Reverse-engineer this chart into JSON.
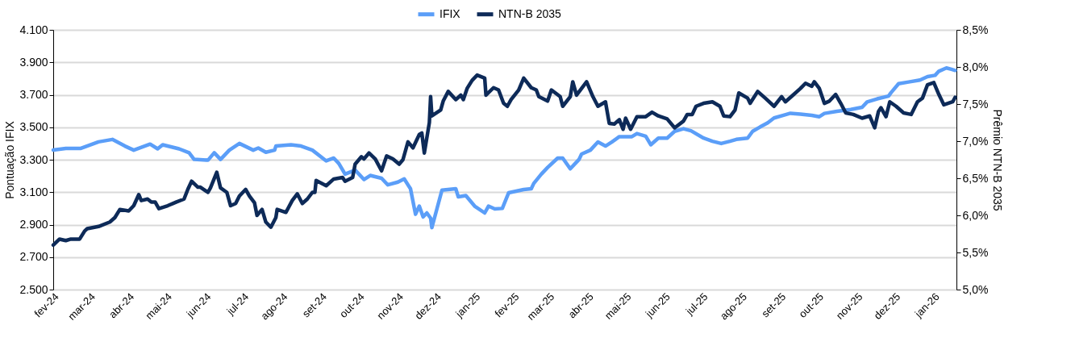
{
  "chart_data": {
    "type": "line",
    "ylabel": "Pontuação IFIX",
    "y2label": "Prêmio NTN-B 2035",
    "xlim": [
      "2024-02-01",
      "2026-01-19"
    ],
    "xticks": [
      {
        "value": "2024-02-01",
        "label": "fev-24"
      },
      {
        "value": "2024-03-01",
        "label": "mar-24"
      },
      {
        "value": "2024-04-01",
        "label": "abr-24"
      },
      {
        "value": "2024-05-01",
        "label": "mai-24"
      },
      {
        "value": "2024-06-01",
        "label": "jun-24"
      },
      {
        "value": "2024-07-01",
        "label": "jul-24"
      },
      {
        "value": "2024-08-01",
        "label": "ago-24"
      },
      {
        "value": "2024-09-01",
        "label": "set-24"
      },
      {
        "value": "2024-10-01",
        "label": "out-24"
      },
      {
        "value": "2024-11-01",
        "label": "nov-24"
      },
      {
        "value": "2024-12-01",
        "label": "dez-24"
      },
      {
        "value": "2025-01-01",
        "label": "jan-25"
      },
      {
        "value": "2025-02-01",
        "label": "fev-25"
      },
      {
        "value": "2025-03-01",
        "label": "mar-25"
      },
      {
        "value": "2025-04-01",
        "label": "abr-25"
      },
      {
        "value": "2025-05-01",
        "label": "mai-25"
      },
      {
        "value": "2025-06-01",
        "label": "jun-25"
      },
      {
        "value": "2025-07-01",
        "label": "jul-25"
      },
      {
        "value": "2025-08-01",
        "label": "ago-25"
      },
      {
        "value": "2025-09-01",
        "label": "set-25"
      },
      {
        "value": "2025-10-01",
        "label": "out-25"
      },
      {
        "value": "2025-11-01",
        "label": "nov-25"
      },
      {
        "value": "2025-12-01",
        "label": "dez-25"
      },
      {
        "value": "2026-01-01",
        "label": "jan-26"
      }
    ],
    "ylim": [
      2500,
      4100
    ],
    "yticks": [
      {
        "value": 2500,
        "label": "2.500"
      },
      {
        "value": 2700,
        "label": "2.700"
      },
      {
        "value": 2900,
        "label": "2.900"
      },
      {
        "value": 3100,
        "label": "3.100"
      },
      {
        "value": 3300,
        "label": "3.300"
      },
      {
        "value": 3500,
        "label": "3.500"
      },
      {
        "value": 3700,
        "label": "3.700"
      },
      {
        "value": 3900,
        "label": "3.900"
      },
      {
        "value": 4100,
        "label": "4.100"
      }
    ],
    "y2lim": [
      5.0,
      8.5
    ],
    "y2ticks": [
      {
        "value": 5.0,
        "label": "5,0%"
      },
      {
        "value": 5.5,
        "label": "5,5%"
      },
      {
        "value": 6.0,
        "label": "6,0%"
      },
      {
        "value": 6.5,
        "label": "6,5%"
      },
      {
        "value": 7.0,
        "label": "7,0%"
      },
      {
        "value": 7.5,
        "label": "7,5%"
      },
      {
        "value": 8.0,
        "label": "8,0%"
      },
      {
        "value": 8.5,
        "label": "8,5%"
      }
    ],
    "grid": "y",
    "legend": "top",
    "marker": "none",
    "line_style": "solid",
    "series": [
      {
        "name": "IFIX",
        "color": "#5b9ef8",
        "x": [
          "2024-02-01",
          "2024-02-11",
          "2024-02-23",
          "2024-03-08",
          "2024-03-19",
          "2024-03-29",
          "2024-04-05",
          "2024-04-18",
          "2024-04-24",
          "2024-04-28",
          "2024-05-11",
          "2024-05-19",
          "2024-05-23",
          "2024-06-03",
          "2024-06-08",
          "2024-06-13",
          "2024-06-20",
          "2024-06-28",
          "2024-07-09",
          "2024-07-13",
          "2024-07-19",
          "2024-07-26",
          "2024-07-27",
          "2024-08-08",
          "2024-08-16",
          "2024-08-25",
          "2024-09-05",
          "2024-09-11",
          "2024-09-15",
          "2024-09-20",
          "2024-09-28",
          "2024-10-05",
          "2024-10-10",
          "2024-10-19",
          "2024-10-24",
          "2024-11-01",
          "2024-11-06",
          "2024-11-11",
          "2024-11-15",
          "2024-11-18",
          "2024-11-21",
          "2024-11-24",
          "2024-11-27",
          "2024-11-28",
          "2024-12-02",
          "2024-12-06",
          "2024-12-17",
          "2024-12-19",
          "2024-12-25",
          "2025-01-01",
          "2025-01-09",
          "2025-01-12",
          "2025-01-17",
          "2025-01-23",
          "2025-01-28",
          "2025-02-09",
          "2025-02-15",
          "2025-02-17",
          "2025-02-23",
          "2025-02-28",
          "2025-03-08",
          "2025-03-12",
          "2025-03-18",
          "2025-03-25",
          "2025-03-27",
          "2025-04-03",
          "2025-04-09",
          "2025-04-15",
          "2025-04-20",
          "2025-04-26",
          "2025-05-06",
          "2025-05-10",
          "2025-05-17",
          "2025-05-21",
          "2025-05-27",
          "2025-06-03",
          "2025-06-09",
          "2025-06-16",
          "2025-06-22",
          "2025-07-02",
          "2025-07-09",
          "2025-07-16",
          "2025-07-23",
          "2025-07-28",
          "2025-08-06",
          "2025-08-10",
          "2025-08-16",
          "2025-08-22",
          "2025-08-27",
          "2025-09-03",
          "2025-09-09",
          "2025-09-17",
          "2025-09-26",
          "2025-10-02",
          "2025-10-06",
          "2025-10-16",
          "2025-10-27",
          "2025-11-05",
          "2025-11-09",
          "2025-11-17",
          "2025-11-26",
          "2025-11-28",
          "2025-12-04",
          "2025-12-12",
          "2025-12-21",
          "2025-12-27",
          "2026-01-02",
          "2026-01-05",
          "2026-01-11",
          "2026-01-15",
          "2026-01-18"
        ],
        "values": [
          3360,
          3370,
          3370,
          3410,
          3425,
          3384,
          3359,
          3396,
          3367,
          3392,
          3367,
          3343,
          3302,
          3297,
          3343,
          3302,
          3359,
          3400,
          3359,
          3372,
          3346,
          3359,
          3384,
          3392,
          3384,
          3359,
          3293,
          3310,
          3277,
          3211,
          3236,
          3178,
          3203,
          3186,
          3145,
          3162,
          3182,
          3121,
          2964,
          3014,
          2948,
          2972,
          2940,
          2882,
          2997,
          3112,
          3121,
          3071,
          3079,
          3014,
          2972,
          3014,
          2997,
          3000,
          3096,
          3116,
          3121,
          3154,
          3211,
          3252,
          3310,
          3310,
          3244,
          3302,
          3335,
          3359,
          3409,
          3384,
          3409,
          3442,
          3442,
          3461,
          3445,
          3392,
          3433,
          3433,
          3475,
          3491,
          3478,
          3433,
          3414,
          3400,
          3414,
          3425,
          3433,
          3475,
          3502,
          3527,
          3557,
          3573,
          3586,
          3581,
          3573,
          3565,
          3585,
          3598,
          3609,
          3623,
          3656,
          3675,
          3692,
          3713,
          3768,
          3779,
          3791,
          3812,
          3820,
          3845,
          3865,
          3857,
          3850
        ]
      },
      {
        "name": "NTN-B 2035",
        "color": "#0d2a58",
        "axis": "y2",
        "x": [
          "2024-02-01",
          "2024-02-06",
          "2024-02-11",
          "2024-02-15",
          "2024-02-22",
          "2024-02-26",
          "2024-02-28",
          "2024-03-08",
          "2024-03-17",
          "2024-03-21",
          "2024-03-25",
          "2024-04-01",
          "2024-04-05",
          "2024-04-09",
          "2024-04-11",
          "2024-04-16",
          "2024-04-19",
          "2024-04-22",
          "2024-04-25",
          "2024-05-02",
          "2024-05-09",
          "2024-05-15",
          "2024-05-18",
          "2024-05-21",
          "2024-05-26",
          "2024-05-28",
          "2024-06-03",
          "2024-06-05",
          "2024-06-10",
          "2024-06-13",
          "2024-06-18",
          "2024-06-21",
          "2024-06-25",
          "2024-06-28",
          "2024-07-03",
          "2024-07-06",
          "2024-07-10",
          "2024-07-12",
          "2024-07-16",
          "2024-07-19",
          "2024-07-23",
          "2024-07-27",
          "2024-07-28",
          "2024-08-04",
          "2024-08-09",
          "2024-08-13",
          "2024-08-17",
          "2024-08-21",
          "2024-08-25",
          "2024-08-27",
          "2024-08-28",
          "2024-09-05",
          "2024-09-11",
          "2024-09-18",
          "2024-09-20",
          "2024-09-26",
          "2024-09-28",
          "2024-10-03",
          "2024-10-05",
          "2024-10-09",
          "2024-10-14",
          "2024-10-19",
          "2024-10-23",
          "2024-10-28",
          "2024-11-02",
          "2024-11-05",
          "2024-11-09",
          "2024-11-13",
          "2024-11-18",
          "2024-11-20",
          "2024-11-22",
          "2024-11-26",
          "2024-11-27",
          "2024-11-28",
          "2024-12-05",
          "2024-12-07",
          "2024-12-11",
          "2024-12-17",
          "2024-12-21",
          "2024-12-23",
          "2024-12-26",
          "2024-12-30",
          "2025-01-03",
          "2025-01-09",
          "2025-01-10",
          "2025-01-16",
          "2025-01-20",
          "2025-01-24",
          "2025-01-27",
          "2025-01-30",
          "2025-02-05",
          "2025-02-09",
          "2025-02-15",
          "2025-02-19",
          "2025-02-21",
          "2025-02-28",
          "2025-03-03",
          "2025-03-10",
          "2025-03-12",
          "2025-03-18",
          "2025-03-20",
          "2025-03-23",
          "2025-03-27",
          "2025-03-31",
          "2025-04-05",
          "2025-04-09",
          "2025-04-15",
          "2025-04-18",
          "2025-04-22",
          "2025-04-26",
          "2025-04-29",
          "2025-05-01",
          "2025-05-05",
          "2025-05-10",
          "2025-05-17",
          "2025-05-22",
          "2025-05-27",
          "2025-06-03",
          "2025-06-09",
          "2025-06-16",
          "2025-06-19",
          "2025-06-23",
          "2025-06-26",
          "2025-07-02",
          "2025-07-09",
          "2025-07-15",
          "2025-07-18",
          "2025-07-23",
          "2025-07-27",
          "2025-07-30",
          "2025-08-06",
          "2025-08-08",
          "2025-08-14",
          "2025-08-20",
          "2025-08-27",
          "2025-09-02",
          "2025-09-05",
          "2025-09-11",
          "2025-09-17",
          "2025-09-21",
          "2025-09-26",
          "2025-09-28",
          "2025-10-02",
          "2025-10-06",
          "2025-10-10",
          "2025-10-15",
          "2025-10-19",
          "2025-10-23",
          "2025-10-29",
          "2025-11-05",
          "2025-11-11",
          "2025-11-15",
          "2025-11-18",
          "2025-11-20",
          "2025-11-24",
          "2025-11-27",
          "2025-12-02",
          "2025-12-08",
          "2025-12-14",
          "2025-12-19",
          "2025-12-23",
          "2025-12-27",
          "2026-01-01",
          "2026-01-05",
          "2026-01-09",
          "2026-01-16",
          "2026-01-18"
        ],
        "values": [
          5.6,
          5.68,
          5.66,
          5.68,
          5.68,
          5.79,
          5.82,
          5.85,
          5.91,
          5.97,
          6.08,
          6.06,
          6.13,
          6.28,
          6.2,
          6.22,
          6.18,
          6.18,
          6.09,
          6.13,
          6.18,
          6.22,
          6.35,
          6.46,
          6.38,
          6.38,
          6.31,
          6.37,
          6.58,
          6.37,
          6.31,
          6.13,
          6.16,
          6.26,
          6.35,
          6.26,
          6.17,
          6.0,
          6.08,
          5.91,
          5.84,
          5.97,
          6.08,
          6.04,
          6.2,
          6.29,
          6.16,
          6.22,
          6.31,
          6.31,
          6.47,
          6.4,
          6.49,
          6.51,
          6.46,
          6.51,
          6.69,
          6.79,
          6.76,
          6.84,
          6.76,
          6.6,
          6.8,
          6.76,
          6.69,
          6.75,
          6.99,
          6.91,
          7.09,
          7.11,
          6.84,
          7.25,
          7.6,
          7.34,
          7.42,
          7.54,
          7.67,
          7.56,
          7.62,
          7.56,
          7.71,
          7.82,
          7.89,
          7.85,
          7.62,
          7.72,
          7.69,
          7.51,
          7.47,
          7.56,
          7.69,
          7.85,
          7.72,
          7.69,
          7.6,
          7.54,
          7.69,
          7.6,
          7.47,
          7.6,
          7.8,
          7.62,
          7.71,
          7.8,
          7.6,
          7.47,
          7.53,
          7.24,
          7.23,
          7.29,
          7.16,
          7.31,
          7.16,
          7.33,
          7.33,
          7.39,
          7.34,
          7.3,
          7.18,
          7.27,
          7.36,
          7.36,
          7.47,
          7.51,
          7.53,
          7.47,
          7.34,
          7.33,
          7.42,
          7.65,
          7.58,
          7.51,
          7.67,
          7.58,
          7.47,
          7.6,
          7.53,
          7.62,
          7.71,
          7.78,
          7.74,
          7.8,
          7.71,
          7.51,
          7.54,
          7.63,
          7.51,
          7.38,
          7.36,
          7.31,
          7.34,
          7.18,
          7.4,
          7.45,
          7.33,
          7.53,
          7.47,
          7.38,
          7.36,
          7.53,
          7.58,
          7.76,
          7.79,
          7.63,
          7.49,
          7.53,
          7.59
        ]
      }
    ]
  }
}
